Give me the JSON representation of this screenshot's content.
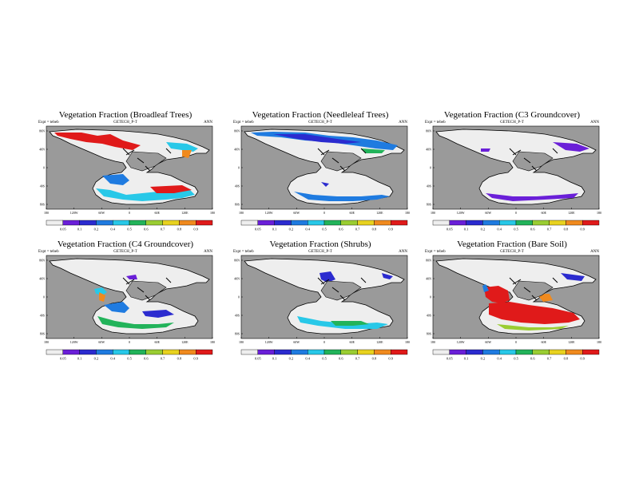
{
  "figure": {
    "panels": [
      {
        "title": "Vegetation Fraction (Broadleaf Trees)",
        "expt": "Expt = tebeb",
        "model": "GETECH_P-T",
        "season": "ANN",
        "xticks": [
          "180",
          "120W",
          "60W",
          "0",
          "60E",
          "120E",
          "180"
        ],
        "yticks": [
          "80N",
          "40N",
          "0",
          "40S",
          "80S"
        ],
        "colorbar_ticks": [
          "0.05",
          "0.1",
          "0.2",
          "0.4",
          "0.5",
          "0.6",
          "0.7",
          "0.8",
          "0.9"
        ],
        "field": "broadleaf"
      },
      {
        "title": "Vegetation Fraction (Needleleaf Trees)",
        "expt": "Expt = tebeb",
        "model": "GETECH_P-T",
        "season": "ANN",
        "xticks": [
          "180",
          "120W",
          "60W",
          "0",
          "60E",
          "120E",
          "180"
        ],
        "yticks": [
          "80N",
          "40N",
          "0",
          "40S",
          "80S"
        ],
        "colorbar_ticks": [
          "0.05",
          "0.1",
          "0.2",
          "0.4",
          "0.5",
          "0.6",
          "0.7",
          "0.8",
          "0.9"
        ],
        "field": "needleleaf"
      },
      {
        "title": "Vegetation Fraction (C3 Groundcover)",
        "expt": "Expt = tebeb",
        "model": "GETECH_P-T",
        "season": "ANN",
        "xticks": [
          "180",
          "120W",
          "60W",
          "0",
          "60E",
          "120E",
          "180"
        ],
        "yticks": [
          "80N",
          "40N",
          "0",
          "40S",
          "80S"
        ],
        "colorbar_ticks": [
          "0.05",
          "0.1",
          "0.2",
          "0.4",
          "0.5",
          "0.6",
          "0.7",
          "0.8",
          "0.9"
        ],
        "field": "c3"
      },
      {
        "title": "Vegetation Fraction (C4 Groundcover)",
        "expt": "Expt = tebeb",
        "model": "GETECH_P-T",
        "season": "ANN",
        "xticks": [
          "180",
          "120W",
          "60W",
          "0",
          "60E",
          "120E",
          "180"
        ],
        "yticks": [
          "80N",
          "40N",
          "0",
          "40S",
          "80S"
        ],
        "colorbar_ticks": [
          "0.05",
          "0.1",
          "0.2",
          "0.4",
          "0.5",
          "0.6",
          "0.7",
          "0.8",
          "0.9"
        ],
        "field": "c4"
      },
      {
        "title": "Vegetation Fraction (Shrubs)",
        "expt": "Expt = tebeb",
        "model": "GETECH_P-T",
        "season": "ANN",
        "xticks": [
          "180",
          "120W",
          "60W",
          "0",
          "60E",
          "120E",
          "180"
        ],
        "yticks": [
          "80N",
          "40N",
          "0",
          "40S",
          "80S"
        ],
        "colorbar_ticks": [
          "0.05",
          "0.1",
          "0.2",
          "0.4",
          "0.5",
          "0.6",
          "0.7",
          "0.8",
          "0.9"
        ],
        "field": "shrubs"
      },
      {
        "title": "Vegetation Fraction (Bare Soil)",
        "expt": "Expt = tebeb",
        "model": "GETECH_P-T",
        "season": "ANN",
        "xticks": [
          "180",
          "120W",
          "60W",
          "0",
          "60E",
          "120E",
          "180"
        ],
        "yticks": [
          "80N",
          "40N",
          "0",
          "40S",
          "80S"
        ],
        "colorbar_ticks": [
          "0.05",
          "0.1",
          "0.2",
          "0.4",
          "0.5",
          "0.6",
          "0.7",
          "0.8",
          "0.9"
        ],
        "field": "bare"
      }
    ],
    "colors": {
      "ocean": "#9a9a9a",
      "land_low": "#eeeeee",
      "colorbar": [
        "#eeeeee",
        "#6a1fd8",
        "#2b2bcf",
        "#1f7be0",
        "#28c8e8",
        "#22b35a",
        "#9acd32",
        "#e8d21f",
        "#f08a1e",
        "#e01a1a"
      ]
    }
  }
}
